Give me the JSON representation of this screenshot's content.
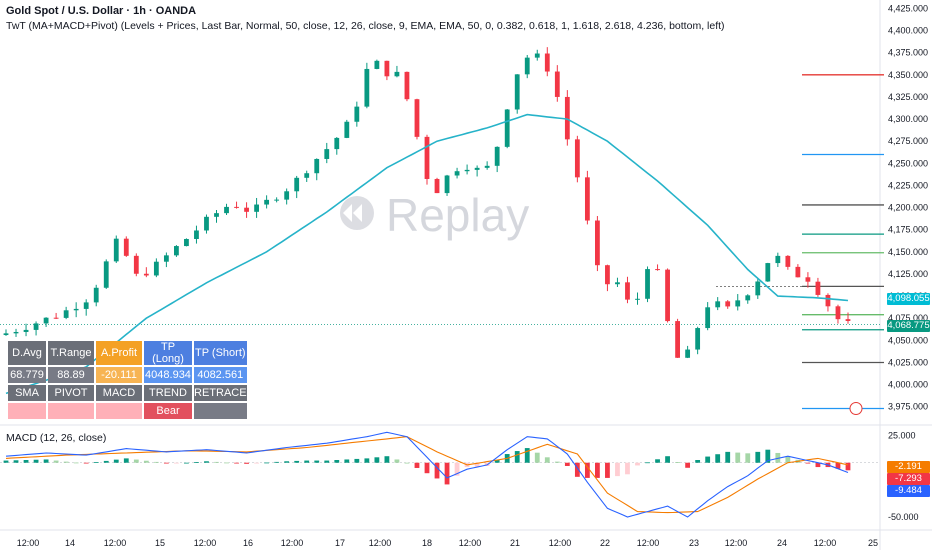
{
  "header": {
    "title": "Gold Spot / U.S. Dollar · 1h · OANDA",
    "subtitle": "TwT (MA+MACD+Pivot) (Levels + Prices, Last Bar, Normal, 50, close, 12, 26, close, 9, EMA, EMA, 50, 0, 0.382, 0.618, 1, 1.618, 2.618, 4.236, bottom, left)"
  },
  "watermark": "Replay",
  "macd_label": "MACD (12, 26, close)",
  "price_tags": {
    "ema": {
      "text": "4,098.055",
      "color": "#00bcd4"
    },
    "last": {
      "text": "4,068.775",
      "color": "#089981"
    }
  },
  "macd_tags": [
    {
      "text": "-2.191",
      "color": "#f57c00"
    },
    {
      "text": "-7.293",
      "color": "#f23645"
    },
    {
      "text": "-9.484",
      "color": "#2962ff"
    }
  ],
  "table": {
    "row1": [
      "D.Avg",
      "T.Range",
      "A.Profit",
      "TP (Long)",
      "TP (Short)"
    ],
    "row2": [
      "68.779",
      "88.89",
      "-20.111",
      "4048.934",
      "4082.561"
    ],
    "row3": [
      "SMA",
      "PIVOT",
      "MACD",
      "TREND",
      "RETRACE"
    ],
    "row4": [
      "",
      "",
      "",
      "Bear",
      ""
    ]
  },
  "colors": {
    "up": "#089981",
    "down": "#f23645",
    "ema": "#26b3c9",
    "macd_line": "#2962ff",
    "signal_line": "#f57c00"
  },
  "chart_data": [
    {
      "type": "candlestick",
      "title": "Gold Spot / U.S. Dollar · 1h · OANDA",
      "x_tick_labels": [
        "12:00",
        "14",
        "12:00",
        "15",
        "12:00",
        "16",
        "12:00",
        "17",
        "12:00",
        "18",
        "12:00",
        "21",
        "12:00",
        "22",
        "12:00",
        "23",
        "12:00",
        "24",
        "12:00",
        "25"
      ],
      "y_tick_labels": [
        "3,975.000",
        "4,000.000",
        "4,025.000",
        "4,050.000",
        "4,075.000",
        "4,100.000",
        "4,125.000",
        "4,150.000",
        "4,175.000",
        "4,200.000",
        "4,225.000",
        "4,250.000",
        "4,275.000",
        "4,300.000",
        "4,325.000",
        "4,350.000",
        "4,375.000",
        "4,400.000",
        "4,425.000"
      ],
      "ylim": [
        3960,
        4430
      ],
      "close_path": [
        {
          "t": 0,
          "v": 4056
        },
        {
          "t": 3,
          "v": 4068
        },
        {
          "t": 6,
          "v": 4080
        },
        {
          "t": 9,
          "v": 4100
        },
        {
          "t": 11,
          "v": 4150
        },
        {
          "t": 12,
          "v": 4170
        },
        {
          "t": 13,
          "v": 4120
        },
        {
          "t": 15,
          "v": 4130
        },
        {
          "t": 17,
          "v": 4150
        },
        {
          "t": 19,
          "v": 4170
        },
        {
          "t": 21,
          "v": 4190
        },
        {
          "t": 23,
          "v": 4205
        },
        {
          "t": 25,
          "v": 4195
        },
        {
          "t": 27,
          "v": 4210
        },
        {
          "t": 29,
          "v": 4225
        },
        {
          "t": 31,
          "v": 4250
        },
        {
          "t": 33,
          "v": 4272
        },
        {
          "t": 35,
          "v": 4300
        },
        {
          "t": 36,
          "v": 4335
        },
        {
          "t": 37,
          "v": 4375
        },
        {
          "t": 38,
          "v": 4350
        },
        {
          "t": 39,
          "v": 4355
        },
        {
          "t": 40,
          "v": 4345
        },
        {
          "t": 41,
          "v": 4300
        },
        {
          "t": 42,
          "v": 4260
        },
        {
          "t": 43,
          "v": 4210
        },
        {
          "t": 44,
          "v": 4230
        },
        {
          "t": 45,
          "v": 4240
        },
        {
          "t": 46,
          "v": 4250
        },
        {
          "t": 47,
          "v": 4245
        },
        {
          "t": 48,
          "v": 4240
        },
        {
          "t": 49,
          "v": 4250
        },
        {
          "t": 50,
          "v": 4290
        },
        {
          "t": 51,
          "v": 4340
        },
        {
          "t": 52,
          "v": 4365
        },
        {
          "t": 53,
          "v": 4375
        },
        {
          "t": 54,
          "v": 4365
        },
        {
          "t": 55,
          "v": 4350
        },
        {
          "t": 56,
          "v": 4300
        },
        {
          "t": 57,
          "v": 4255
        },
        {
          "t": 58,
          "v": 4215
        },
        {
          "t": 59,
          "v": 4150
        },
        {
          "t": 60,
          "v": 4110
        },
        {
          "t": 61,
          "v": 4118
        },
        {
          "t": 62,
          "v": 4112
        },
        {
          "t": 63,
          "v": 4075
        },
        {
          "t": 64,
          "v": 4120
        },
        {
          "t": 65,
          "v": 4150
        },
        {
          "t": 66,
          "v": 4100
        },
        {
          "t": 67,
          "v": 4040
        },
        {
          "t": 68,
          "v": 4020
        },
        {
          "t": 69,
          "v": 4050
        },
        {
          "t": 70,
          "v": 4080
        },
        {
          "t": 71,
          "v": 4100
        },
        {
          "t": 72,
          "v": 4080
        },
        {
          "t": 73,
          "v": 4090
        },
        {
          "t": 74,
          "v": 4102
        },
        {
          "t": 75,
          "v": 4108
        },
        {
          "t": 76,
          "v": 4130
        },
        {
          "t": 77,
          "v": 4148
        },
        {
          "t": 78,
          "v": 4138
        },
        {
          "t": 79,
          "v": 4120
        },
        {
          "t": 80,
          "v": 4128
        },
        {
          "t": 81,
          "v": 4112
        },
        {
          "t": 82,
          "v": 4100
        },
        {
          "t": 83,
          "v": 4080
        },
        {
          "t": 84,
          "v": 4068
        }
      ],
      "ema_50": [
        {
          "t": 0,
          "v": 3990
        },
        {
          "t": 8,
          "v": 4020
        },
        {
          "t": 14,
          "v": 4075
        },
        {
          "t": 20,
          "v": 4115
        },
        {
          "t": 26,
          "v": 4150
        },
        {
          "t": 32,
          "v": 4195
        },
        {
          "t": 38,
          "v": 4245
        },
        {
          "t": 43,
          "v": 4275
        },
        {
          "t": 48,
          "v": 4290
        },
        {
          "t": 52,
          "v": 4305
        },
        {
          "t": 56,
          "v": 4300
        },
        {
          "t": 60,
          "v": 4275
        },
        {
          "t": 65,
          "v": 4230
        },
        {
          "t": 70,
          "v": 4180
        },
        {
          "t": 74,
          "v": 4130
        },
        {
          "t": 77,
          "v": 4100
        },
        {
          "t": 81,
          "v": 4098
        },
        {
          "t": 84,
          "v": 4095
        }
      ],
      "pivot_levels": [
        {
          "value": 4350,
          "color": "#e53935"
        },
        {
          "value": 4260,
          "color": "#2196f3"
        },
        {
          "value": 4203,
          "color": "#555555"
        },
        {
          "value": 4170,
          "color": "#089981"
        },
        {
          "value": 4149,
          "color": "#66bb6a"
        },
        {
          "value": 4111,
          "color": "#555555"
        },
        {
          "value": 4079,
          "color": "#66bb6a"
        },
        {
          "value": 4062,
          "color": "#089981"
        },
        {
          "value": 4025,
          "color": "#555555"
        },
        {
          "value": 3973,
          "color": "#2196f3"
        }
      ]
    },
    {
      "type": "histogram+line",
      "title": "MACD (12, 26, close)",
      "y_tick_labels": [
        "25.000",
        "-50.000"
      ],
      "ylim": [
        -62,
        32
      ],
      "macd_line": [
        {
          "t": 0,
          "v": 6
        },
        {
          "t": 4,
          "v": 9
        },
        {
          "t": 8,
          "v": 7
        },
        {
          "t": 12,
          "v": 13
        },
        {
          "t": 16,
          "v": 10
        },
        {
          "t": 20,
          "v": 12
        },
        {
          "t": 24,
          "v": 9
        },
        {
          "t": 28,
          "v": 14
        },
        {
          "t": 32,
          "v": 18
        },
        {
          "t": 36,
          "v": 24
        },
        {
          "t": 38,
          "v": 28
        },
        {
          "t": 40,
          "v": 24
        },
        {
          "t": 42,
          "v": 5
        },
        {
          "t": 44,
          "v": -14
        },
        {
          "t": 46,
          "v": -6
        },
        {
          "t": 48,
          "v": -2
        },
        {
          "t": 50,
          "v": 12
        },
        {
          "t": 52,
          "v": 24
        },
        {
          "t": 54,
          "v": 22
        },
        {
          "t": 56,
          "v": 8
        },
        {
          "t": 58,
          "v": -18
        },
        {
          "t": 60,
          "v": -42
        },
        {
          "t": 62,
          "v": -50
        },
        {
          "t": 64,
          "v": -45
        },
        {
          "t": 66,
          "v": -40
        },
        {
          "t": 68,
          "v": -50
        },
        {
          "t": 70,
          "v": -35
        },
        {
          "t": 72,
          "v": -22
        },
        {
          "t": 74,
          "v": -12
        },
        {
          "t": 76,
          "v": 2
        },
        {
          "t": 78,
          "v": 6
        },
        {
          "t": 80,
          "v": 2
        },
        {
          "t": 82,
          "v": -2
        },
        {
          "t": 84,
          "v": -9
        }
      ],
      "signal_line": [
        {
          "t": 0,
          "v": 4
        },
        {
          "t": 6,
          "v": 7
        },
        {
          "t": 12,
          "v": 9
        },
        {
          "t": 18,
          "v": 11
        },
        {
          "t": 24,
          "v": 10
        },
        {
          "t": 30,
          "v": 14
        },
        {
          "t": 36,
          "v": 20
        },
        {
          "t": 40,
          "v": 24
        },
        {
          "t": 43,
          "v": 10
        },
        {
          "t": 46,
          "v": -2
        },
        {
          "t": 50,
          "v": 4
        },
        {
          "t": 54,
          "v": 17
        },
        {
          "t": 57,
          "v": 8
        },
        {
          "t": 60,
          "v": -28
        },
        {
          "t": 63,
          "v": -45
        },
        {
          "t": 66,
          "v": -46
        },
        {
          "t": 69,
          "v": -45
        },
        {
          "t": 72,
          "v": -32
        },
        {
          "t": 75,
          "v": -15
        },
        {
          "t": 78,
          "v": 0
        },
        {
          "t": 81,
          "v": 4
        },
        {
          "t": 84,
          "v": -2
        }
      ]
    }
  ]
}
